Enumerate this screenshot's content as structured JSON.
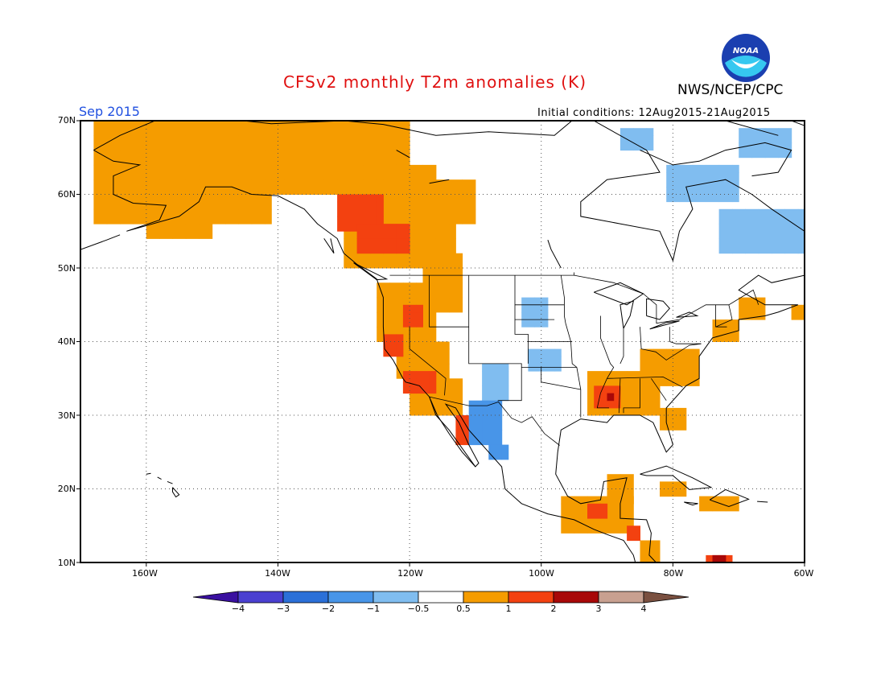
{
  "title": "CFSv2 monthly T2m anomalies (K)",
  "org": "NWS/NCEP/CPC",
  "month": "Sep 2015",
  "initial_conditions": "Initial conditions: 12Aug2015-21Aug2015",
  "logo_text": "NOAA",
  "axes": {
    "lat_ticks": [
      "70N",
      "60N",
      "50N",
      "40N",
      "30N",
      "20N",
      "10N"
    ],
    "lon_ticks": [
      "160W",
      "140W",
      "120W",
      "100W",
      "80W",
      "60W"
    ]
  },
  "colorbar": {
    "labels": [
      "−4",
      "−3",
      "−2",
      "−1",
      "−0.5",
      "0.5",
      "1",
      "2",
      "3",
      "4"
    ],
    "colors": [
      "#3a10a0",
      "#4a40d0",
      "#2b70d8",
      "#4895e8",
      "#80bdf0",
      "#ffffff",
      "#f59c00",
      "#f34110",
      "#a80808",
      "#c8a090",
      "#7a5040"
    ]
  },
  "colors": {
    "title": "#e01010",
    "month": "#2050e0",
    "warm_1": "#f59c00",
    "warm_2": "#f34110",
    "warm_3": "#a80808",
    "cool_1": "#80bdf0",
    "cool_2": "#4895e8"
  }
}
